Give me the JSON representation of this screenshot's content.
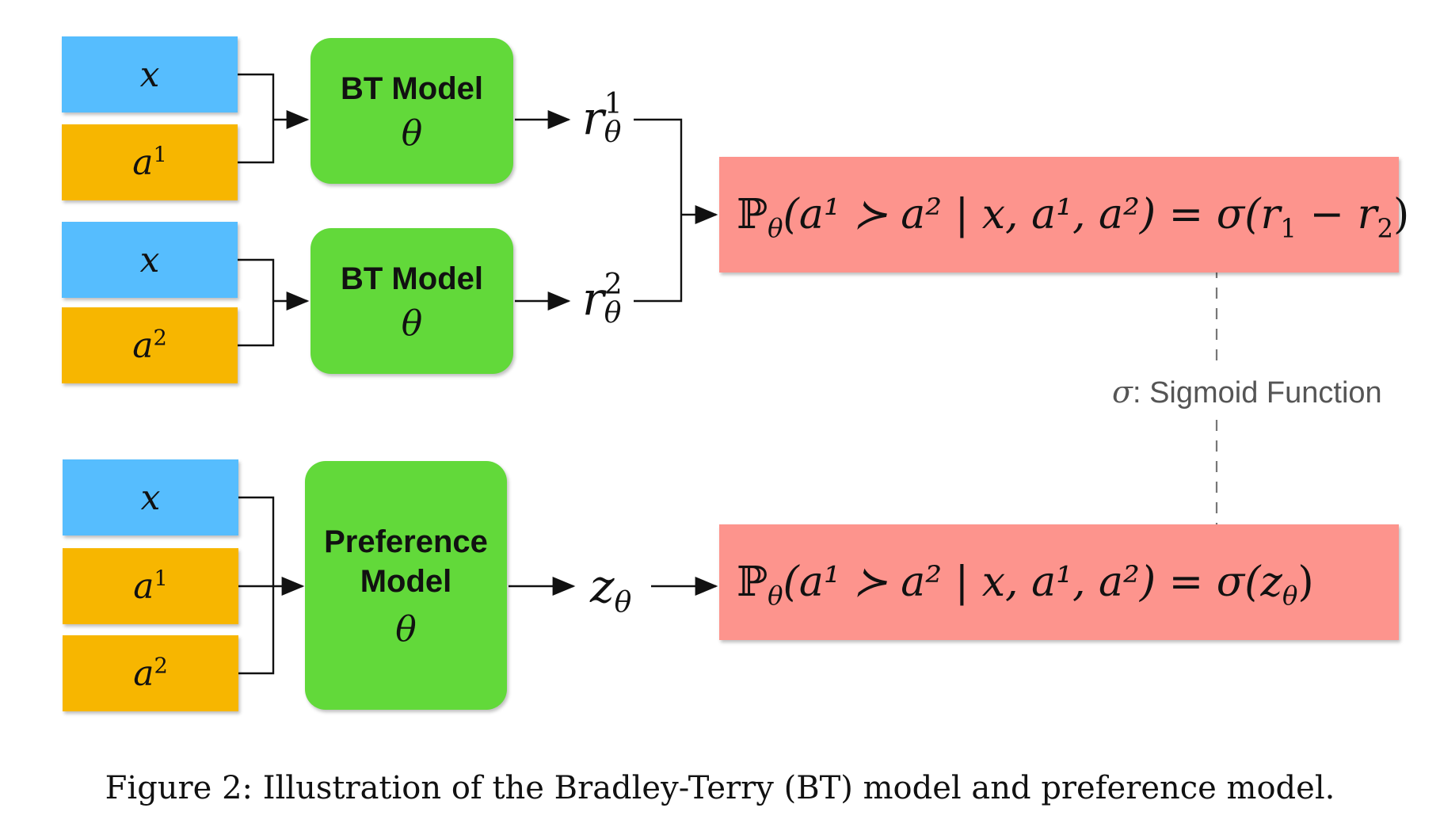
{
  "colors": {
    "input_x": "#56BDFE",
    "input_a": "#F7B600",
    "model": "#62D93A",
    "formula": "#FD948D",
    "connector": "#111111",
    "dashed": "#777777"
  },
  "inputs": {
    "x": "x",
    "a1_base": "a",
    "a1_sup": "1",
    "a2_base": "a",
    "a2_sup": "2"
  },
  "bt_model": {
    "title": "BT Model",
    "param": "θ"
  },
  "preference_model": {
    "title_line1": "Preference",
    "title_line2": "Model",
    "param": "θ"
  },
  "outputs": {
    "r1_base": "r",
    "r1_sub": "θ",
    "r1_sup": "1",
    "r2_base": "r",
    "r2_sub": "θ",
    "r2_sup": "2",
    "z_base": "z",
    "z_sub": "θ"
  },
  "formulas": {
    "bt": {
      "prob": "ℙ",
      "sub": "θ",
      "body": "(a¹ ≻ a² | x, a¹, a²) = σ(r",
      "r1_sub": "1",
      "minus": " − r",
      "r2_sub": "2",
      "close": ")"
    },
    "pref": {
      "prob": "ℙ",
      "sub": "θ",
      "body": "(a¹ ≻ a² | x, a¹, a²) = σ(z",
      "z_sub": "θ",
      "close": ")"
    }
  },
  "sigma_note": {
    "symbol": "σ",
    "text": ": Sigmoid Function"
  },
  "caption": "Figure 2: Illustration of the Bradley-Terry (BT) model and preference model."
}
